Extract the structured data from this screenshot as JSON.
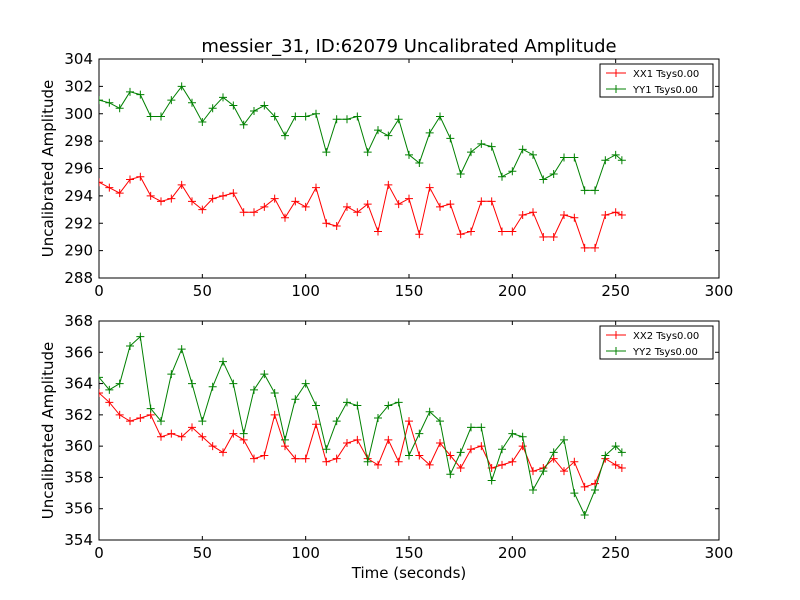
{
  "figure": {
    "background": "#ffffff"
  },
  "chart_data": [
    {
      "type": "line",
      "title": "messier_31, ID:62079 Uncalibrated Amplitude",
      "xlabel": "",
      "ylabel": "Uncalibrated Amplitude",
      "xlim": [
        0,
        300
      ],
      "ylim": [
        288,
        304
      ],
      "xticks": [
        0,
        50,
        100,
        150,
        200,
        250,
        300
      ],
      "yticks": [
        288,
        290,
        292,
        294,
        296,
        298,
        300,
        302,
        304
      ],
      "marker": "+",
      "grid": false,
      "legend_position": "top-right",
      "series": [
        {
          "name": "XX1 Tsys0.00",
          "color": "#ff0000",
          "x": [
            0,
            5,
            10,
            15,
            20,
            25,
            30,
            35,
            40,
            45,
            50,
            55,
            60,
            65,
            70,
            75,
            80,
            85,
            90,
            95,
            100,
            105,
            110,
            115,
            120,
            125,
            130,
            135,
            140,
            145,
            150,
            155,
            160,
            165,
            170,
            175,
            180,
            185,
            190,
            195,
            200,
            205,
            210,
            215,
            220,
            225,
            230,
            235,
            240,
            245,
            250,
            253
          ],
          "y": [
            295,
            294.6,
            294.2,
            295.2,
            295.4,
            294,
            293.6,
            293.8,
            294.8,
            293.6,
            293,
            293.8,
            294,
            294.2,
            292.8,
            292.8,
            293.2,
            293.8,
            292.4,
            293.6,
            293.2,
            294.6,
            292,
            291.8,
            293.2,
            292.8,
            293.4,
            291.4,
            294.8,
            293.4,
            293.8,
            291.2,
            294.6,
            293.2,
            293.4,
            291.2,
            291.4,
            293.6,
            293.6,
            291.4,
            291.4,
            292.6,
            292.8,
            291,
            291,
            292.6,
            292.4,
            290.2,
            290.2,
            292.6,
            292.8,
            292.6
          ]
        },
        {
          "name": "YY1 Tsys0.00",
          "color": "#008000",
          "x": [
            0,
            5,
            10,
            15,
            20,
            25,
            30,
            35,
            40,
            45,
            50,
            55,
            60,
            65,
            70,
            75,
            80,
            85,
            90,
            95,
            100,
            105,
            110,
            115,
            120,
            125,
            130,
            135,
            140,
            145,
            150,
            155,
            160,
            165,
            170,
            175,
            180,
            185,
            190,
            195,
            200,
            205,
            210,
            215,
            220,
            225,
            230,
            235,
            240,
            245,
            250,
            253
          ],
          "y": [
            301,
            300.8,
            300.4,
            301.6,
            301.4,
            299.8,
            299.8,
            301,
            302,
            300.8,
            299.4,
            300.4,
            301.2,
            300.6,
            299.2,
            300.2,
            300.6,
            299.8,
            298.4,
            299.8,
            299.8,
            300,
            297.2,
            299.6,
            299.6,
            299.8,
            297.2,
            298.8,
            298.4,
            299.6,
            297,
            296.4,
            298.6,
            299.8,
            298.2,
            295.6,
            297.2,
            297.8,
            297.6,
            295.4,
            295.8,
            297.4,
            297,
            295.2,
            295.6,
            296.8,
            296.8,
            294.4,
            294.4,
            296.6,
            297,
            296.6
          ]
        }
      ]
    },
    {
      "type": "line",
      "title": "",
      "xlabel": "Time (seconds)",
      "ylabel": "Uncalibrated Amplitude",
      "xlim": [
        0,
        300
      ],
      "ylim": [
        354,
        368
      ],
      "xticks": [
        0,
        50,
        100,
        150,
        200,
        250,
        300
      ],
      "yticks": [
        354,
        356,
        358,
        360,
        362,
        364,
        366,
        368
      ],
      "marker": "+",
      "grid": false,
      "legend_position": "top-right",
      "series": [
        {
          "name": "XX2 Tsys0.00",
          "color": "#ff0000",
          "x": [
            0,
            5,
            10,
            15,
            20,
            25,
            30,
            35,
            40,
            45,
            50,
            55,
            60,
            65,
            70,
            75,
            80,
            85,
            90,
            95,
            100,
            105,
            110,
            115,
            120,
            125,
            130,
            135,
            140,
            145,
            150,
            155,
            160,
            165,
            170,
            175,
            180,
            185,
            190,
            195,
            200,
            205,
            210,
            215,
            220,
            225,
            230,
            235,
            240,
            245,
            250,
            253
          ],
          "y": [
            363.4,
            362.8,
            362,
            361.6,
            361.8,
            362,
            360.6,
            360.8,
            360.6,
            361.2,
            360.6,
            360,
            359.6,
            360.8,
            360.4,
            359.2,
            359.4,
            362,
            360,
            359.2,
            359.2,
            361.4,
            359,
            359.2,
            360.2,
            360.4,
            359.2,
            358.8,
            360.4,
            359,
            361.6,
            359.4,
            358.8,
            360.2,
            359.4,
            358.6,
            359.8,
            360,
            358.6,
            358.8,
            359,
            360,
            358.4,
            358.6,
            359.2,
            358.4,
            359,
            357.4,
            357.6,
            359.2,
            358.8,
            358.6
          ]
        },
        {
          "name": "YY2 Tsys0.00",
          "color": "#008000",
          "x": [
            0,
            5,
            10,
            15,
            20,
            25,
            30,
            35,
            40,
            45,
            50,
            55,
            60,
            65,
            70,
            75,
            80,
            85,
            90,
            95,
            100,
            105,
            110,
            115,
            120,
            125,
            130,
            135,
            140,
            145,
            150,
            155,
            160,
            165,
            170,
            175,
            180,
            185,
            190,
            195,
            200,
            205,
            210,
            215,
            220,
            225,
            230,
            235,
            240,
            245,
            250,
            253
          ],
          "y": [
            364.4,
            363.6,
            364,
            366.4,
            367,
            362.4,
            361.6,
            364.6,
            366.2,
            364,
            361.6,
            363.8,
            365.4,
            364,
            360.8,
            363.6,
            364.6,
            363.4,
            360.4,
            363,
            364,
            362.6,
            359.8,
            361.6,
            362.8,
            362.6,
            359,
            361.8,
            362.6,
            362.8,
            359.4,
            360.8,
            362.2,
            361.6,
            358.2,
            359.6,
            361.2,
            361.2,
            357.8,
            359.8,
            360.8,
            360.6,
            357.2,
            358.4,
            359.6,
            360.4,
            357,
            355.6,
            357.2,
            359.4,
            360,
            359.6
          ]
        }
      ]
    }
  ]
}
